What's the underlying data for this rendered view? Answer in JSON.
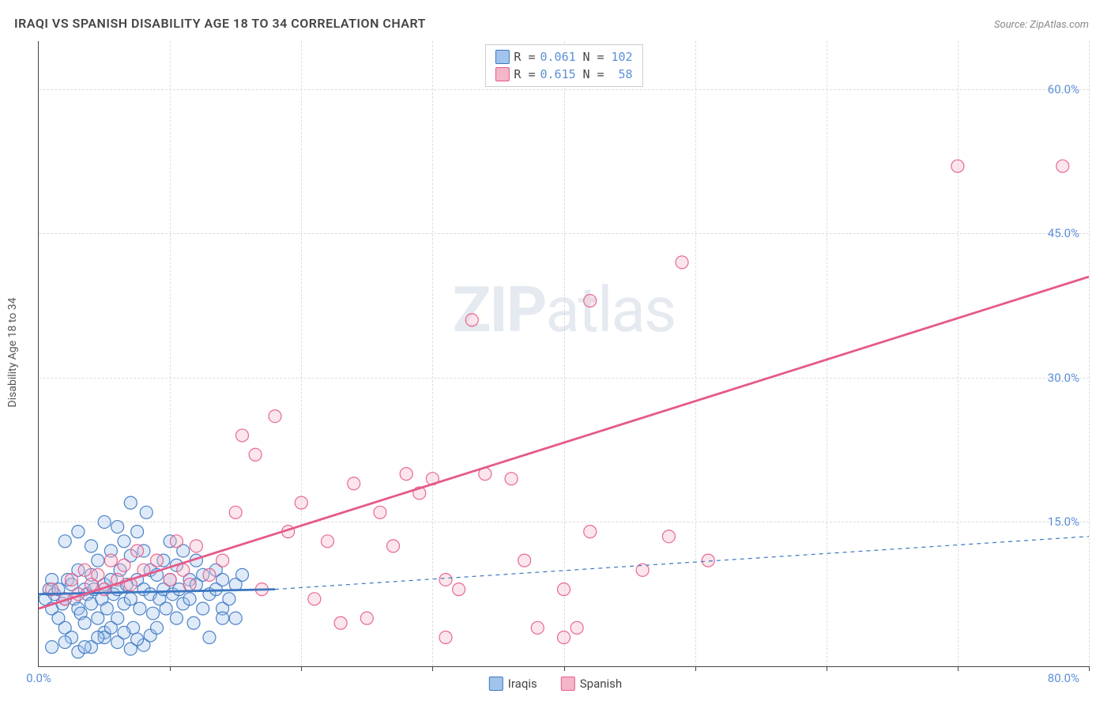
{
  "title": "IRAQI VS SPANISH DISABILITY AGE 18 TO 34 CORRELATION CHART",
  "source": "Source: ZipAtlas.com",
  "y_axis_label": "Disability Age 18 to 34",
  "watermark_bold": "ZIP",
  "watermark_light": "atlas",
  "chart": {
    "type": "scatter",
    "xlim": [
      0,
      80
    ],
    "ylim": [
      0,
      65
    ],
    "x_ticks_minor": [
      10,
      20,
      30,
      40,
      50,
      60,
      70,
      80
    ],
    "x_tick_labels": [
      {
        "v": 0,
        "label": "0.0%"
      }
    ],
    "x_max_label": "80.0%",
    "y_tick_labels": [
      {
        "v": 15,
        "label": "15.0%"
      },
      {
        "v": 30,
        "label": "30.0%"
      },
      {
        "v": 45,
        "label": "45.0%"
      },
      {
        "v": 60,
        "label": "60.0%"
      }
    ],
    "grid_color": "#dddddd",
    "background_color": "#ffffff",
    "axis_color": "#444444",
    "marker_radius": 8,
    "marker_stroke_width": 1.2,
    "marker_fill_opacity": 0.35,
    "marker_stroke_opacity": 0.9,
    "series": [
      {
        "name": "Iraqis",
        "color_fill": "#a2c4ec",
        "color_stroke": "#3b77c2",
        "R": "0.061",
        "N": "102",
        "trend_solid": {
          "x1": 0,
          "y1": 7.5,
          "x2": 18,
          "y2": 8.0,
          "width": 2.8
        },
        "trend_dashed": {
          "x1": 18,
          "y1": 8.0,
          "x2": 80,
          "y2": 13.5,
          "width": 1.2,
          "dash": "5,5"
        },
        "points": [
          [
            0.5,
            7
          ],
          [
            0.8,
            8
          ],
          [
            1,
            6
          ],
          [
            1,
            9
          ],
          [
            1.2,
            7.5
          ],
          [
            1.5,
            5
          ],
          [
            1.5,
            8
          ],
          [
            1.8,
            6.5
          ],
          [
            2,
            7
          ],
          [
            2,
            4
          ],
          [
            2.2,
            9
          ],
          [
            2.5,
            3
          ],
          [
            2.5,
            8.5
          ],
          [
            2.7,
            7
          ],
          [
            3,
            6
          ],
          [
            3,
            10
          ],
          [
            3.2,
            5.5
          ],
          [
            3.5,
            8
          ],
          [
            3.5,
            4.5
          ],
          [
            3.7,
            7.5
          ],
          [
            4,
            9.5
          ],
          [
            4,
            6.5
          ],
          [
            4.2,
            8
          ],
          [
            4.5,
            5
          ],
          [
            4.5,
            11
          ],
          [
            4.8,
            7
          ],
          [
            5,
            8.5
          ],
          [
            5,
            3.5
          ],
          [
            5.2,
            6
          ],
          [
            5.5,
            9
          ],
          [
            5.5,
            12
          ],
          [
            5.7,
            7.5
          ],
          [
            6,
            8
          ],
          [
            6,
            5
          ],
          [
            6.2,
            10
          ],
          [
            6.5,
            6.5
          ],
          [
            6.5,
            13
          ],
          [
            6.7,
            8.5
          ],
          [
            7,
            7
          ],
          [
            7,
            11.5
          ],
          [
            7.2,
            4
          ],
          [
            7.5,
            9
          ],
          [
            7.5,
            14
          ],
          [
            7.7,
            6
          ],
          [
            8,
            8
          ],
          [
            8,
            12
          ],
          [
            8.2,
            16
          ],
          [
            8.5,
            7.5
          ],
          [
            8.5,
            10
          ],
          [
            8.7,
            5.5
          ],
          [
            9,
            9.5
          ],
          [
            9.2,
            7
          ],
          [
            9.5,
            11
          ],
          [
            9.5,
            8
          ],
          [
            9.7,
            6
          ],
          [
            10,
            9
          ],
          [
            10,
            13
          ],
          [
            10.2,
            7.5
          ],
          [
            10.5,
            5
          ],
          [
            10.5,
            10.5
          ],
          [
            10.7,
            8
          ],
          [
            11,
            6.5
          ],
          [
            11,
            12
          ],
          [
            11.5,
            9
          ],
          [
            11.5,
            7
          ],
          [
            11.8,
            4.5
          ],
          [
            12,
            8.5
          ],
          [
            12,
            11
          ],
          [
            12.5,
            6
          ],
          [
            12.5,
            9.5
          ],
          [
            13,
            7.5
          ],
          [
            13,
            3
          ],
          [
            13.5,
            8
          ],
          [
            13.5,
            10
          ],
          [
            14,
            6
          ],
          [
            14,
            9
          ],
          [
            14.5,
            7
          ],
          [
            15,
            8.5
          ],
          [
            15,
            5
          ],
          [
            15.5,
            9.5
          ],
          [
            1,
            2
          ],
          [
            2,
            2.5
          ],
          [
            3,
            1.5
          ],
          [
            4,
            2
          ],
          [
            5,
            3
          ],
          [
            6,
            2.5
          ],
          [
            7,
            1.8
          ],
          [
            8,
            2.2
          ],
          [
            2,
            13
          ],
          [
            3,
            14
          ],
          [
            4,
            12.5
          ],
          [
            5,
            15
          ],
          [
            6,
            14.5
          ],
          [
            7,
            17
          ],
          [
            3.5,
            2
          ],
          [
            4.5,
            3
          ],
          [
            5.5,
            4
          ],
          [
            6.5,
            3.5
          ],
          [
            7.5,
            2.8
          ],
          [
            8.5,
            3.2
          ],
          [
            9,
            4
          ],
          [
            14,
            5
          ]
        ]
      },
      {
        "name": "Spanish",
        "color_fill": "#f4b6c8",
        "color_stroke": "#e55a8a",
        "R": "0.615",
        "N": "58",
        "trend_solid": {
          "x1": 0,
          "y1": 6.0,
          "x2": 80,
          "y2": 40.5,
          "width": 2.8
        },
        "points": [
          [
            1,
            8
          ],
          [
            2,
            7
          ],
          [
            2.5,
            9
          ],
          [
            3,
            7.5
          ],
          [
            3.5,
            10
          ],
          [
            4,
            8.5
          ],
          [
            4.5,
            9.5
          ],
          [
            5,
            8
          ],
          [
            5.5,
            11
          ],
          [
            6,
            9
          ],
          [
            6.5,
            10.5
          ],
          [
            7,
            8.5
          ],
          [
            7.5,
            12
          ],
          [
            8,
            10
          ],
          [
            9,
            11
          ],
          [
            10,
            9
          ],
          [
            10.5,
            13
          ],
          [
            11,
            10
          ],
          [
            11.5,
            8.5
          ],
          [
            12,
            12.5
          ],
          [
            13,
            9.5
          ],
          [
            14,
            11
          ],
          [
            15,
            16
          ],
          [
            15.5,
            24
          ],
          [
            16.5,
            22
          ],
          [
            17,
            8
          ],
          [
            18,
            26
          ],
          [
            19,
            14
          ],
          [
            20,
            17
          ],
          [
            21,
            7
          ],
          [
            22,
            13
          ],
          [
            23,
            4.5
          ],
          [
            24,
            19
          ],
          [
            25,
            5
          ],
          [
            26,
            16
          ],
          [
            27,
            12.5
          ],
          [
            28,
            20
          ],
          [
            29,
            18
          ],
          [
            30,
            19.5
          ],
          [
            31,
            3
          ],
          [
            31,
            9
          ],
          [
            32,
            8
          ],
          [
            33,
            36
          ],
          [
            34,
            20
          ],
          [
            36,
            19.5
          ],
          [
            37,
            11
          ],
          [
            38,
            4
          ],
          [
            40,
            8
          ],
          [
            40,
            3
          ],
          [
            41,
            4
          ],
          [
            42,
            14
          ],
          [
            42,
            38
          ],
          [
            46,
            10
          ],
          [
            48,
            13.5
          ],
          [
            49,
            42
          ],
          [
            51,
            11
          ],
          [
            70,
            52
          ],
          [
            78,
            52
          ]
        ]
      }
    ],
    "bottom_legend": [
      {
        "label": "Iraqis",
        "fill": "#a2c4ec",
        "stroke": "#3b77c2"
      },
      {
        "label": "Spanish",
        "fill": "#f4b6c8",
        "stroke": "#e55a8a"
      }
    ]
  }
}
